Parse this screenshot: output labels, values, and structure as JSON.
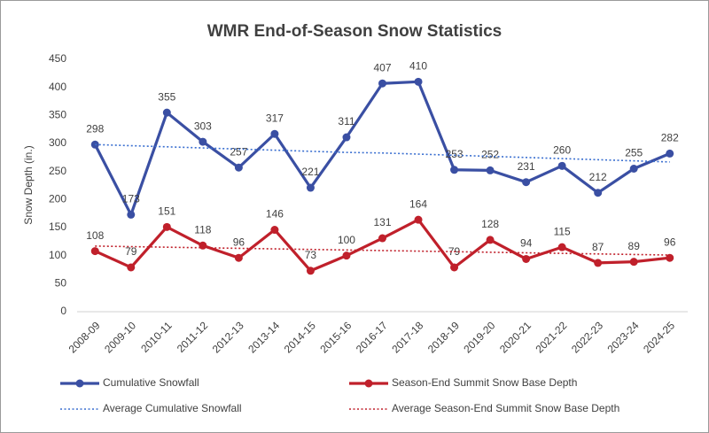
{
  "chart_data": {
    "type": "line",
    "title": "WMR End-of-Season Snow Statistics",
    "y_label": "Snow Depth (in.)",
    "categories": [
      "2008-09",
      "2009-10",
      "2010-11",
      "2011-12",
      "2012-13",
      "2013-14",
      "2014-15",
      "2015-16",
      "2016-17",
      "2017-18",
      "2018-19",
      "2019-20",
      "2020-21",
      "2021-22",
      "2022-23",
      "2023-24",
      "2024-25"
    ],
    "ylim": [
      0,
      450
    ],
    "yticks": [
      0,
      50,
      100,
      150,
      200,
      250,
      300,
      350,
      400,
      450
    ],
    "grid": false,
    "legend_position": "bottom",
    "series": [
      {
        "name": "Cumulative Snowfall",
        "color": "#3a4fa3",
        "line_style": "solid",
        "markers": true,
        "data_labels": true,
        "values": [
          298,
          173,
          355,
          303,
          257,
          317,
          221,
          311,
          407,
          410,
          253,
          252,
          231,
          260,
          212,
          255,
          282
        ]
      },
      {
        "name": "Season-End Summit Snow Base Depth",
        "color": "#c0202b",
        "line_style": "solid",
        "markers": true,
        "data_labels": true,
        "values": [
          108,
          79,
          151,
          118,
          96,
          146,
          73,
          100,
          131,
          164,
          79,
          128,
          94,
          115,
          87,
          89,
          96
        ]
      },
      {
        "name": "Average Cumulative Snowfall",
        "color": "#3a6fd0",
        "line_style": "dotted",
        "markers": false,
        "data_labels": false,
        "values": [
          298,
          296,
          294,
          292,
          290,
          288,
          286,
          284,
          283,
          281,
          279,
          277,
          275,
          273,
          271,
          269,
          267
        ]
      },
      {
        "name": "Average Season-End Summit Snow Base Depth",
        "color": "#c0202b",
        "line_style": "dotted",
        "markers": false,
        "data_labels": false,
        "values": [
          117,
          116,
          115,
          114,
          113,
          112,
          111,
          110,
          109,
          108,
          107,
          106,
          105,
          104,
          103,
          102,
          101
        ]
      }
    ]
  }
}
